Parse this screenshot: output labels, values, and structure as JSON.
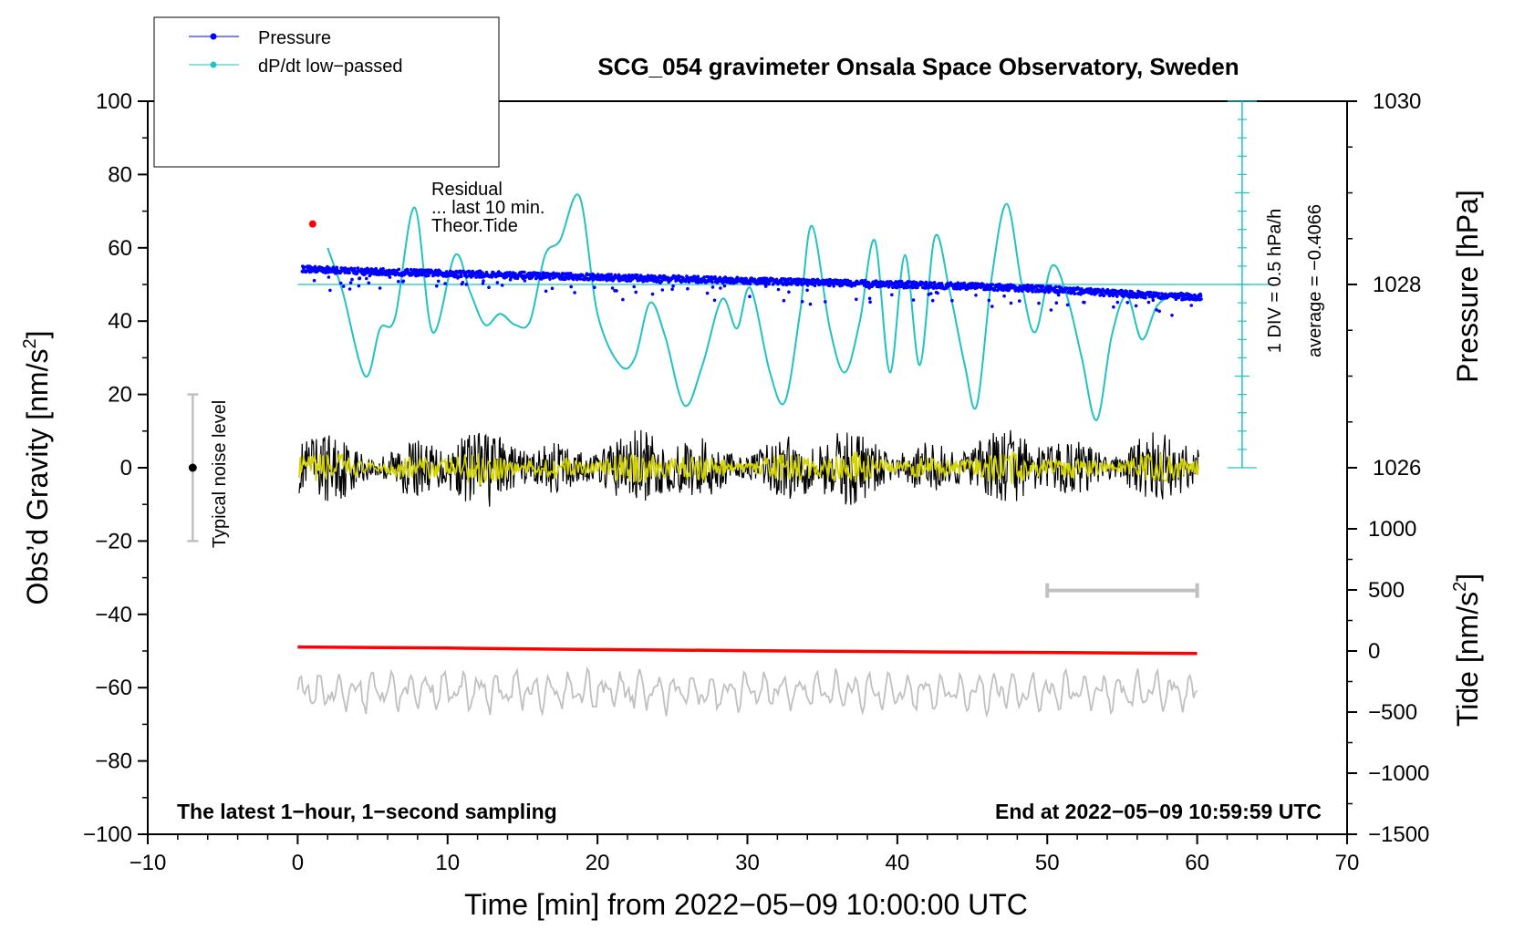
{
  "chart_data": {
    "type": "line",
    "title": "SCG_054 gravimeter Onsala Space Observatory, Sweden",
    "xlabel": "Time [min] from 2022−05−09 10:00:00 UTC",
    "ylabel_left": "Obs’d Gravity [nm/s",
    "ylabel_left_sup": "2",
    "ylabel_left_end": "]",
    "ylabel_right_top": "Pressure [hPa]",
    "ylabel_right_bottom": "Tide [nm/s",
    "ylabel_right_bottom_sup": "2",
    "ylabel_right_bottom_end": "]",
    "xlim": [
      -10,
      70
    ],
    "ylim": [
      -100,
      100
    ],
    "x_ticks": [
      -10,
      0,
      10,
      20,
      30,
      40,
      50,
      60,
      70
    ],
    "x_tick_labels": [
      "−10",
      "0",
      "10",
      "20",
      "30",
      "40",
      "50",
      "60",
      "70"
    ],
    "y_ticks": [
      100,
      80,
      60,
      40,
      20,
      0,
      -20,
      -40,
      -60,
      -80,
      -100
    ],
    "y_tick_labels": [
      "100",
      "80",
      "60",
      "40",
      "20",
      "0",
      "−20",
      "−40",
      "−60",
      "−80",
      "−100"
    ],
    "pressure_axis": {
      "ticks": [
        1030,
        1028,
        1026
      ],
      "tick_labels": [
        "1030",
        "1028",
        "1026"
      ],
      "y_ref": 50,
      "y_per_hpa": 25
    },
    "tide_axis": {
      "ticks": [
        1000,
        500,
        0,
        -500,
        -1000,
        -1500
      ],
      "tick_labels": [
        "1000",
        "500",
        "0",
        "−500",
        "−1000",
        "−1500"
      ],
      "y_ref": -50,
      "y_per_unit": 0.03333
    },
    "legend": [
      {
        "label": "Pressure",
        "color": "#0000ff"
      },
      {
        "label": "dP/dt low−passed",
        "color": "#22c2c2"
      }
    ],
    "pressure_hpa": {
      "x": [
        0.3,
        5,
        10,
        15,
        20,
        25,
        30,
        35,
        40,
        45,
        50,
        55,
        60.3
      ],
      "values": [
        1028.17,
        1028.14,
        1028.12,
        1028.1,
        1028.08,
        1028.06,
        1028.04,
        1028.02,
        1028.0,
        1027.98,
        1027.95,
        1027.9,
        1027.86
      ]
    },
    "dpdt_lowpassed": {
      "x": [
        2,
        3,
        4.5,
        5.5,
        6.5,
        7.8,
        9,
        10.5,
        11.5,
        12.5,
        13.5,
        14.5,
        15.5,
        16.5,
        17.5,
        18.8,
        20,
        21.5,
        22.5,
        23.5,
        24.5,
        25.8,
        27,
        28.3,
        29.3,
        30.2,
        31.5,
        32.5,
        33.5,
        34.3,
        35.5,
        36.5,
        37.5,
        38.5,
        39.5,
        40.5,
        41.5,
        42.5,
        43.5,
        44.5,
        45.3,
        46.3,
        47.3,
        48.3,
        49.2,
        50.3,
        51.3,
        52.3,
        53.3,
        54.3,
        55.3,
        56.3,
        57.3,
        58.3
      ],
      "values": [
        60,
        48,
        25,
        38,
        41,
        71,
        37,
        58,
        48,
        39,
        42,
        39,
        40,
        58,
        62,
        74,
        42,
        28,
        30,
        45,
        36,
        17,
        28,
        46,
        38,
        49,
        26,
        18,
        42,
        66,
        38,
        26,
        40,
        62,
        26,
        58,
        28,
        63,
        48,
        28,
        17,
        52,
        72,
        50,
        37,
        55,
        47,
        30,
        13,
        36,
        47,
        35,
        44,
        47
      ]
    },
    "dpdt_average_line": 50,
    "dpdt_scale": {
      "label": "1 DIV = 0.5 hPa/h",
      "average_label": "average = −0.4066",
      "x": 63,
      "y_from": 0,
      "y_to": 100
    },
    "residual": {
      "color": "#000000",
      "center": 0,
      "amplitude": 7,
      "x_range": [
        0,
        60
      ]
    },
    "residual_last_10min": {
      "color": "#d4d400",
      "center": 0,
      "amplitude": 3,
      "x_range": [
        0,
        60
      ]
    },
    "theor_tide": {
      "color": "#ff0000",
      "x": [
        0,
        10,
        20,
        30,
        40,
        50,
        60
      ],
      "values": [
        -48.9,
        -49.2,
        -49.6,
        -49.9,
        -50.2,
        -50.4,
        -50.7
      ]
    },
    "tide_residual_gray": {
      "color": "#c0c0c0",
      "center": -61,
      "amplitude": 4,
      "x_range": [
        0,
        60
      ]
    },
    "gray_range_bar": {
      "x_from": 50,
      "x_to": 60,
      "y": -33.5
    },
    "noise_level": {
      "x": -7,
      "y_from": -20,
      "y_to": 20,
      "center": 0,
      "label": "Typical noise level"
    },
    "red_dot": {
      "x": 1,
      "y": 66.5
    },
    "annotations": {
      "residual_label": "Residual",
      "last10_label": "... last 10 min.",
      "tide_label": "Theor.Tide"
    },
    "corner_left": "The latest 1−hour, 1−second sampling",
    "corner_right": "End at 2022−05−09 10:59:59 UTC"
  }
}
